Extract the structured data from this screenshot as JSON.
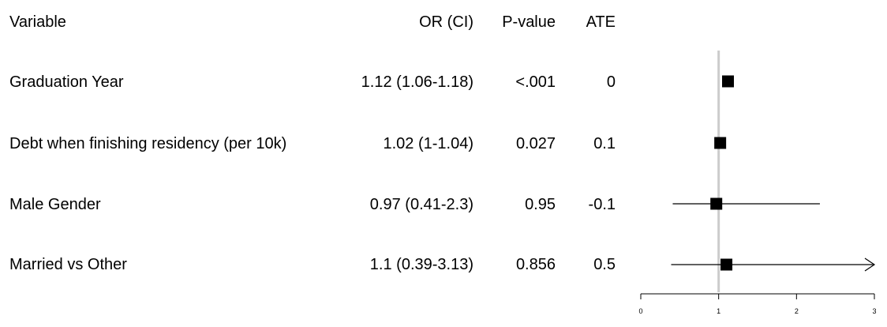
{
  "headers": {
    "variable": "Variable",
    "or_ci": "OR (CI)",
    "p_value": "P-value",
    "ate": "ATE"
  },
  "rows": [
    {
      "variable": "Graduation Year",
      "or_ci": "1.12 (1.06-1.18)",
      "p_value": "<.001",
      "ate": "0"
    },
    {
      "variable": "Debt when finishing residency (per 10k)",
      "or_ci": "1.02 (1-1.04)",
      "p_value": "0.027",
      "ate": "0.1"
    },
    {
      "variable": "Male Gender",
      "or_ci": "0.97 (0.41-2.3)",
      "p_value": "0.95",
      "ate": "-0.1"
    },
    {
      "variable": "Married vs Other",
      "or_ci": "1.1 (0.39-3.13)",
      "p_value": "0.856",
      "ate": "0.5"
    }
  ],
  "chart_data": {
    "type": "scatter",
    "subtype": "forest-plot",
    "reference_line": 1,
    "xlim": [
      0,
      3
    ],
    "xticks": [
      "0",
      "1",
      "2",
      "3"
    ],
    "points": [
      {
        "label": "Graduation Year",
        "estimate": 1.12,
        "lower": 1.06,
        "upper": 1.18
      },
      {
        "label": "Debt when finishing residency (per 10k)",
        "estimate": 1.02,
        "lower": 1.0,
        "upper": 1.04
      },
      {
        "label": "Male Gender",
        "estimate": 0.97,
        "lower": 0.41,
        "upper": 2.3
      },
      {
        "label": "Married vs Other",
        "estimate": 1.1,
        "lower": 0.39,
        "upper": 3.13
      }
    ]
  }
}
